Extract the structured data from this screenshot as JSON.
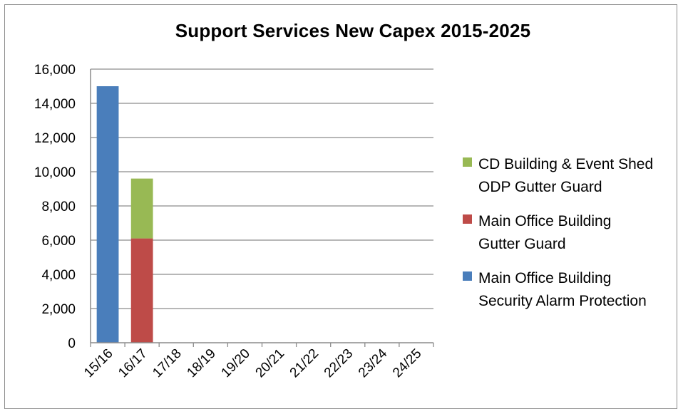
{
  "chart_data": {
    "type": "bar",
    "stacked": true,
    "title": "Support Services New Capex 2015-2025",
    "categories": [
      "15/16",
      "16/17",
      "17/18",
      "18/19",
      "19/20",
      "20/21",
      "21/22",
      "22/23",
      "23/24",
      "24/25"
    ],
    "y_ticks": [
      "0",
      "2,000",
      "4,000",
      "6,000",
      "8,000",
      "10,000",
      "12,000",
      "14,000",
      "16,000"
    ],
    "ylim": [
      0,
      16000
    ],
    "grid": true,
    "legend_position": "right",
    "series": [
      {
        "name": "Main Office Building Security Alarm Protection",
        "legend_lines": [
          "Main Office Building",
          "Security Alarm Protection"
        ],
        "color": "#4a7ebb",
        "values": [
          15000,
          0,
          0,
          0,
          0,
          0,
          0,
          0,
          0,
          0
        ]
      },
      {
        "name": "Main Office Building Gutter Guard",
        "legend_lines": [
          "Main Office Building",
          "Gutter Guard"
        ],
        "color": "#be4b48",
        "values": [
          0,
          6100,
          0,
          0,
          0,
          0,
          0,
          0,
          0,
          0
        ]
      },
      {
        "name": "CD Building & Event Shed ODP Gutter Guard",
        "legend_lines": [
          "CD Building & Event Shed",
          "ODP Gutter Guard"
        ],
        "color": "#98b954",
        "values": [
          0,
          3500,
          0,
          0,
          0,
          0,
          0,
          0,
          0,
          0
        ]
      }
    ]
  }
}
